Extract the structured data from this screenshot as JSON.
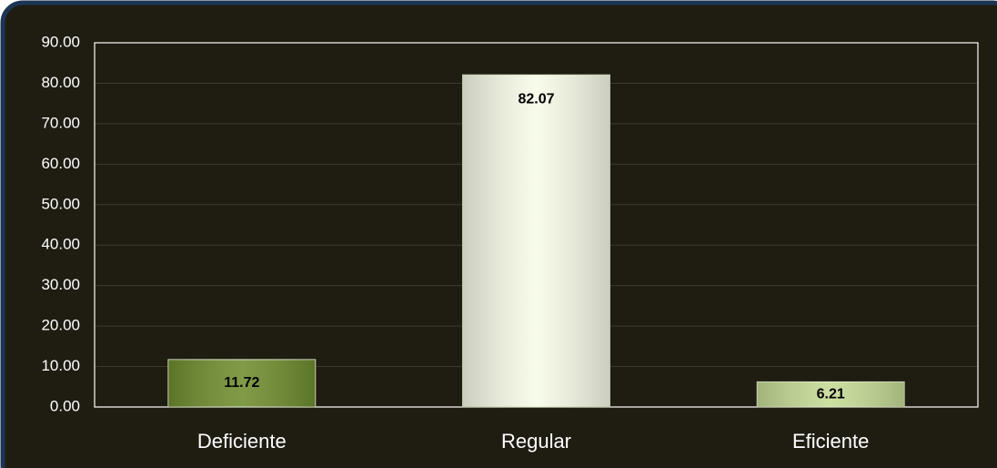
{
  "chart_data": {
    "type": "bar",
    "categories": [
      "Deficiente",
      "Regular",
      "Eficiente"
    ],
    "values": [
      11.72,
      82.07,
      6.21
    ],
    "colors": [
      "#6f8d2f",
      "#f7fbe8",
      "#c5db95"
    ],
    "ylim": [
      0,
      90
    ],
    "yticks": [
      {
        "value": 0,
        "label": "0.00"
      },
      {
        "value": 10,
        "label": "10.00"
      },
      {
        "value": 20,
        "label": "20.00"
      },
      {
        "value": 30,
        "label": "30.00"
      },
      {
        "value": 40,
        "label": "40.00"
      },
      {
        "value": 50,
        "label": "50.00"
      },
      {
        "value": 60,
        "label": "60.00"
      },
      {
        "value": 70,
        "label": "70.00"
      },
      {
        "value": 80,
        "label": "80.00"
      },
      {
        "value": 90,
        "label": "90.00"
      }
    ],
    "grid": true
  }
}
